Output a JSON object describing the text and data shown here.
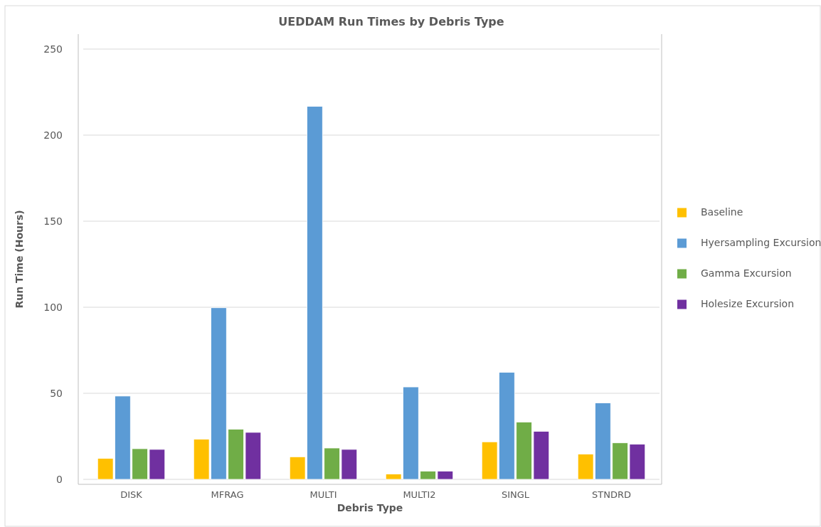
{
  "chart_data": {
    "type": "bar",
    "title": "UEDDAM Run Times by Debris Type",
    "xlabel": "Debris Type",
    "ylabel": "Run Time (Hours)",
    "categories": [
      "DISK",
      "MFRAG",
      "MULTI",
      "MULTI2",
      "SINGL",
      "STNDRD"
    ],
    "series": [
      {
        "name": "Baseline",
        "color": "#ffc000",
        "values": [
          12.2,
          23.3,
          13.1,
          3.1,
          21.8,
          14.7
        ]
      },
      {
        "name": "Hyersampling Excursion",
        "color": "#5b9bd5",
        "values": [
          48.4,
          99.7,
          216.7,
          53.7,
          62.2,
          44.4
        ]
      },
      {
        "name": "Gamma Excursion",
        "color": "#70ad47",
        "values": [
          17.8,
          29.1,
          18.2,
          4.8,
          33.3,
          21.2
        ]
      },
      {
        "name": "Holesize Excursion",
        "color": "#7030a0",
        "values": [
          17.4,
          27.3,
          17.4,
          4.8,
          27.9,
          20.4
        ]
      }
    ],
    "ylim": [
      0,
      250
    ],
    "yticks": [
      0,
      50,
      100,
      150,
      200,
      250
    ],
    "grid": "y",
    "legend": "right"
  }
}
